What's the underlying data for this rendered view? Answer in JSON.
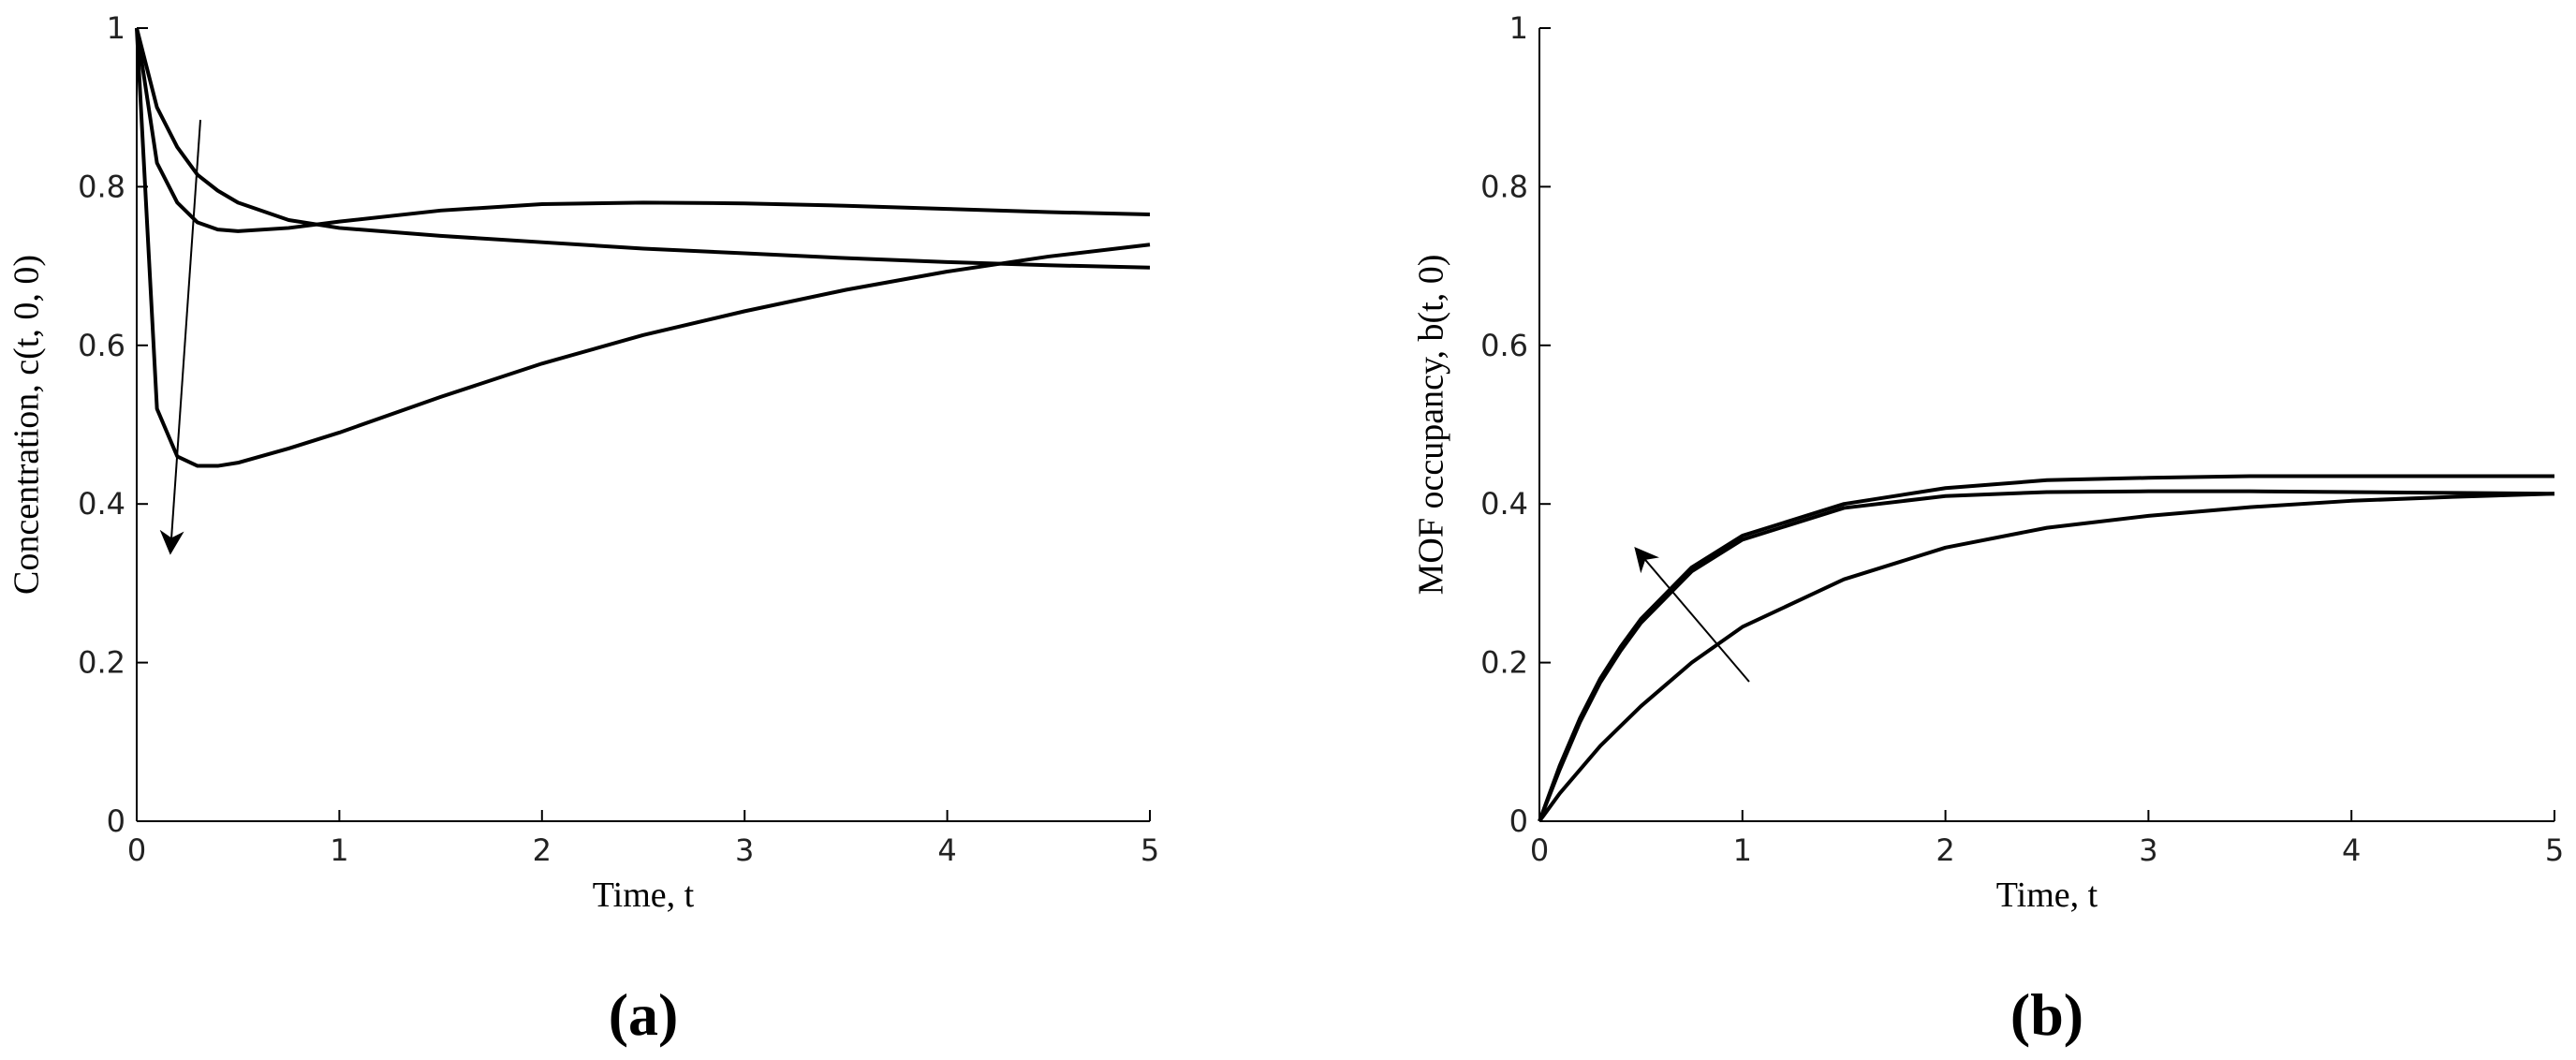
{
  "chart_data": [
    {
      "type": "line",
      "panel_label": "(a)",
      "x_label": "Time, t",
      "y_label": "Concentration, c(t, 0, 0)",
      "x": [
        0,
        0.1,
        0.2,
        0.3,
        0.4,
        0.5,
        0.75,
        1,
        1.5,
        2,
        2.5,
        3,
        3.5,
        4,
        4.5,
        5
      ],
      "series": [
        {
          "color": "#000000",
          "values": [
            1,
            0.9,
            0.85,
            0.815,
            0.795,
            0.78,
            0.758,
            0.748,
            0.738,
            0.73,
            0.722,
            0.716,
            0.71,
            0.705,
            0.701,
            0.698
          ]
        },
        {
          "color": "#000000",
          "values": [
            1,
            0.83,
            0.78,
            0.755,
            0.746,
            0.744,
            0.748,
            0.756,
            0.77,
            0.778,
            0.78,
            0.779,
            0.776,
            0.772,
            0.768,
            0.765
          ]
        },
        {
          "color": "#000000",
          "values": [
            1,
            0.52,
            0.46,
            0.448,
            0.448,
            0.452,
            0.47,
            0.49,
            0.535,
            0.577,
            0.613,
            0.643,
            0.67,
            0.693,
            0.712,
            0.727
          ]
        }
      ],
      "xlim": [
        0,
        5
      ],
      "xticks": [
        0,
        1,
        2,
        3,
        4,
        5
      ],
      "ylim": [
        0,
        1
      ],
      "yticks": [
        0,
        0.2,
        0.4,
        0.6,
        0.8,
        1
      ]
    },
    {
      "type": "line",
      "panel_label": "(b)",
      "x_label": "Time, t",
      "y_label": "MOF occupancy, b(t, 0)",
      "x": [
        0,
        0.1,
        0.2,
        0.3,
        0.4,
        0.5,
        0.75,
        1,
        1.5,
        2,
        2.5,
        3,
        3.5,
        4,
        4.5,
        5
      ],
      "series": [
        {
          "color": "#000000",
          "values": [
            0,
            0.07,
            0.13,
            0.18,
            0.22,
            0.255,
            0.32,
            0.36,
            0.4,
            0.42,
            0.43,
            0.433,
            0.435,
            0.435,
            0.435,
            0.435
          ]
        },
        {
          "color": "#000000",
          "values": [
            0,
            0.065,
            0.125,
            0.175,
            0.215,
            0.25,
            0.315,
            0.355,
            0.395,
            0.41,
            0.415,
            0.416,
            0.416,
            0.415,
            0.414,
            0.413
          ]
        },
        {
          "color": "#000000",
          "values": [
            0,
            0.035,
            0.065,
            0.095,
            0.12,
            0.145,
            0.2,
            0.245,
            0.305,
            0.345,
            0.37,
            0.385,
            0.396,
            0.404,
            0.409,
            0.413
          ]
        }
      ],
      "xlim": [
        0,
        5
      ],
      "xticks": [
        0,
        1,
        2,
        3,
        4,
        5
      ],
      "ylim": [
        0,
        1
      ],
      "yticks": [
        0,
        0.2,
        0.4,
        0.6,
        0.8,
        1
      ]
    }
  ]
}
